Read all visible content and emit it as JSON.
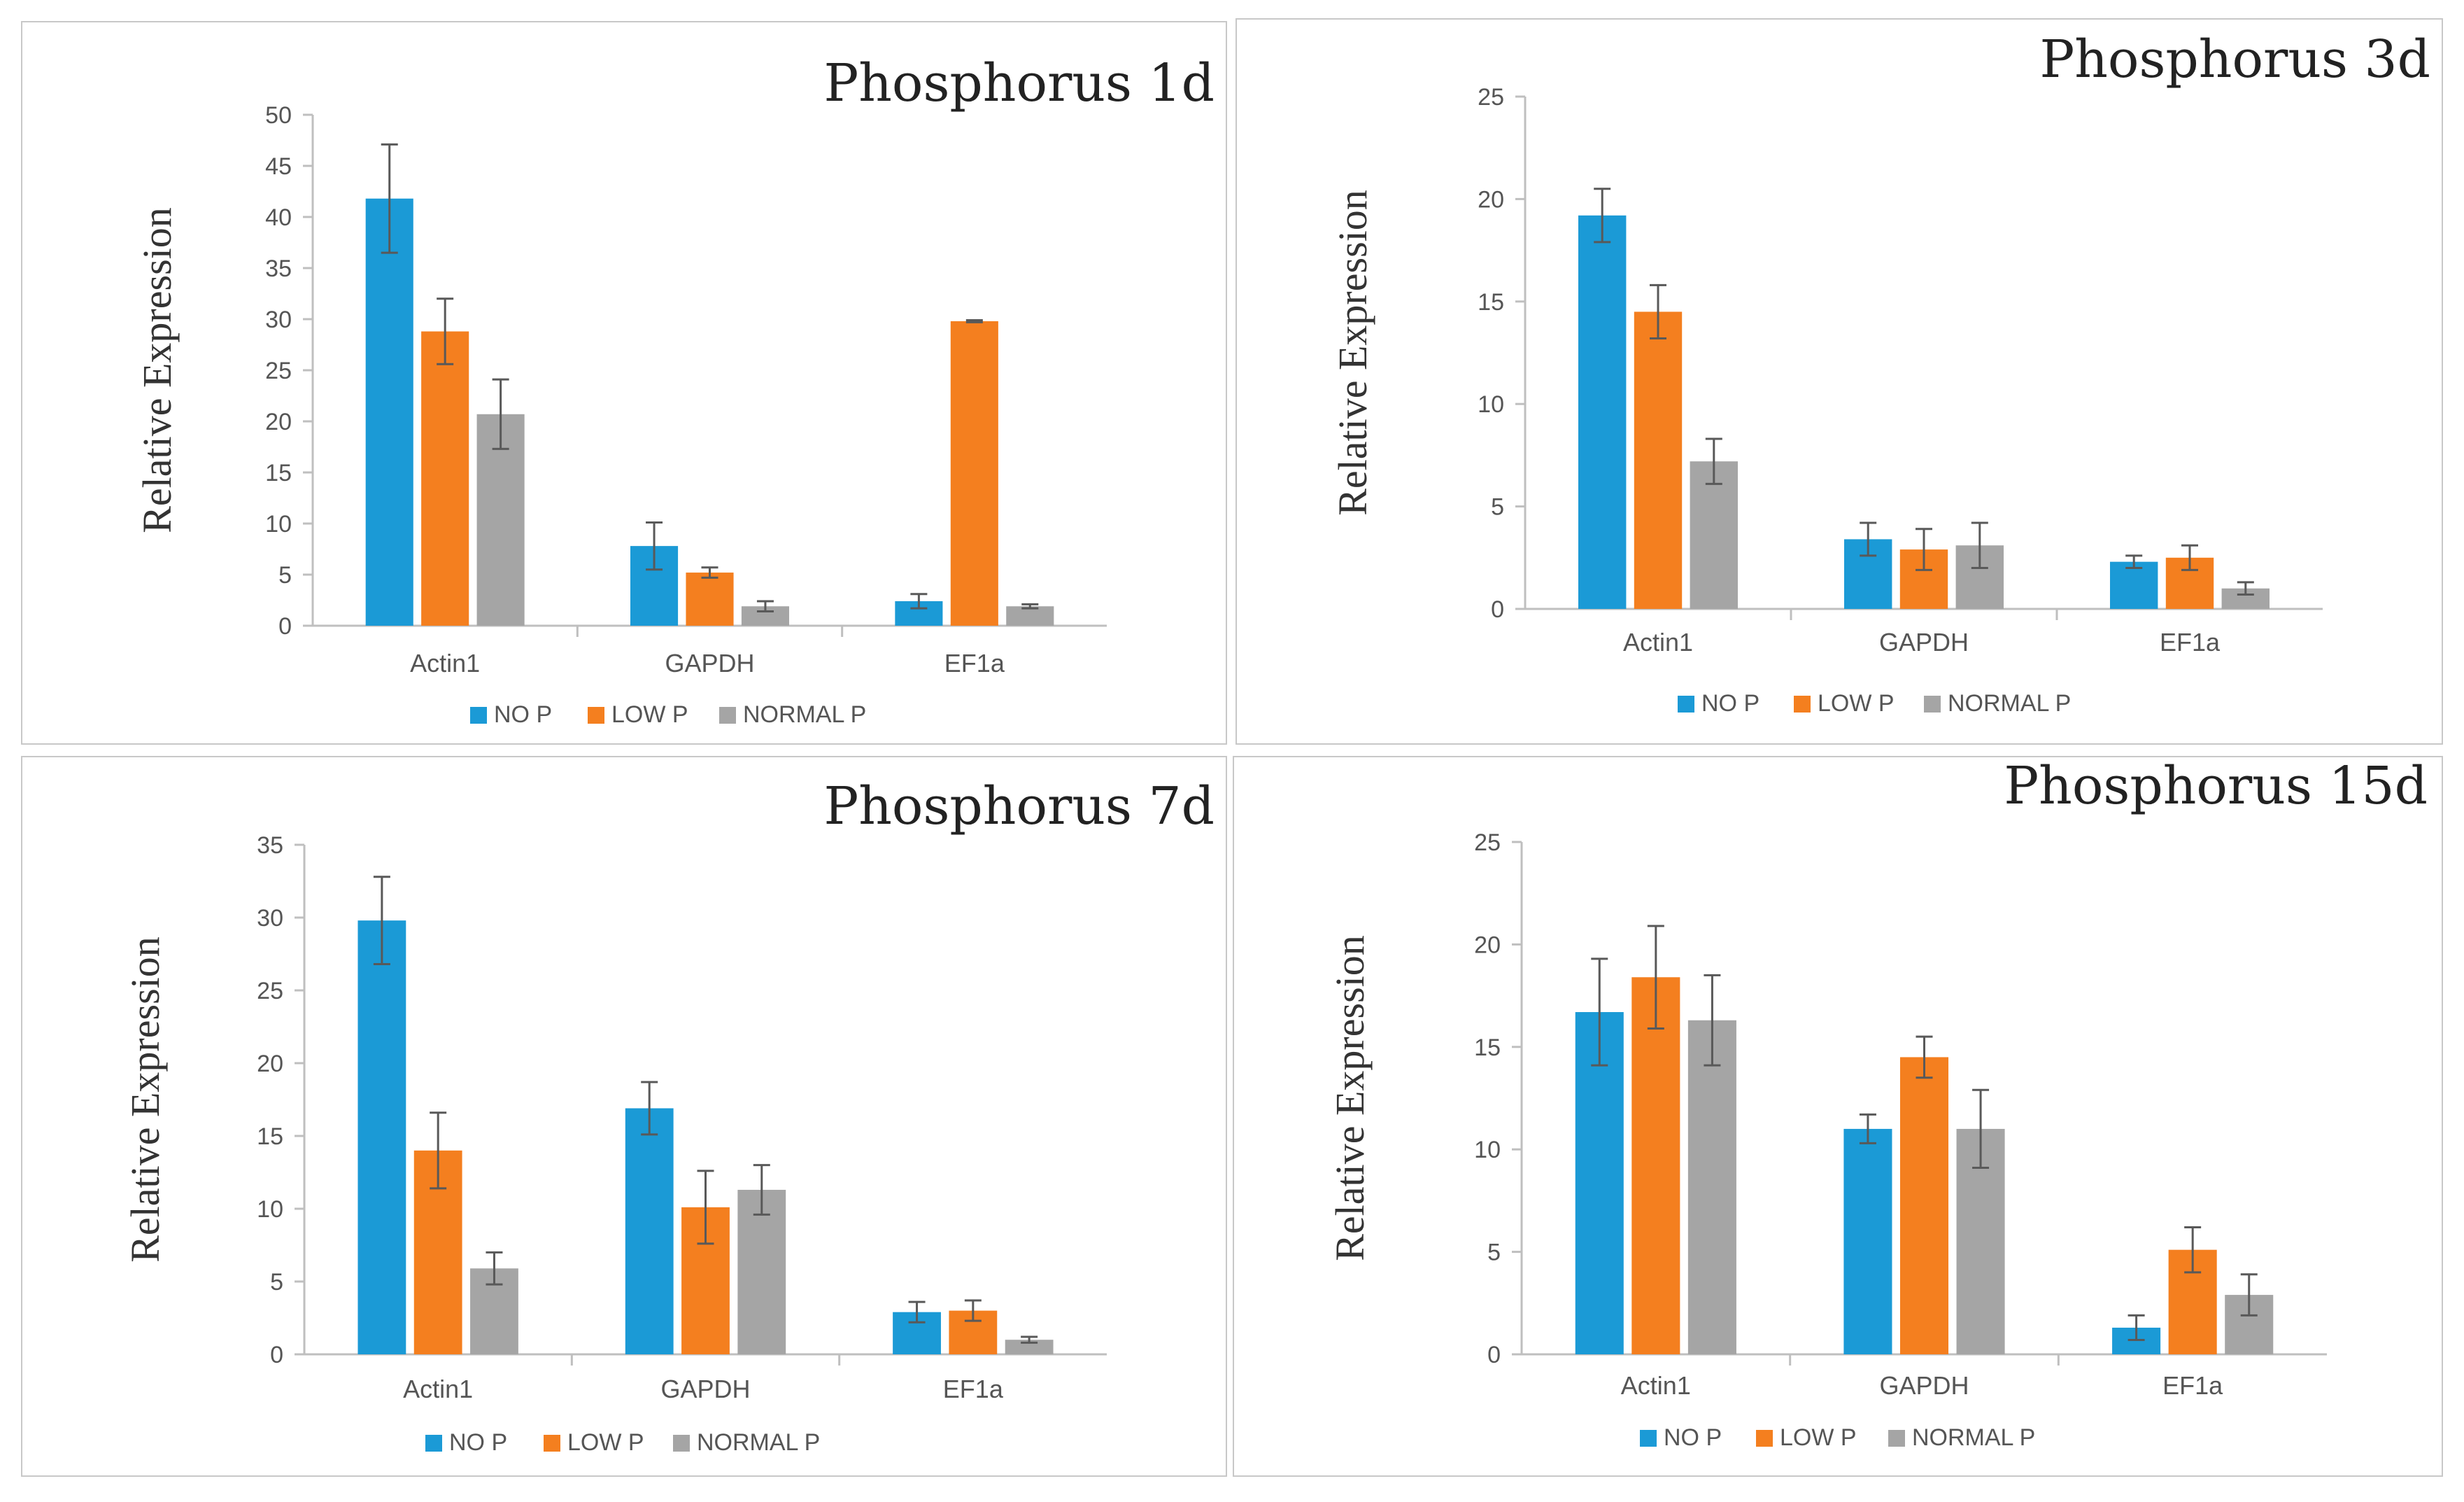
{
  "chart_data": [
    {
      "type": "bar",
      "title": "Phosphorus 1d",
      "xlabel": "",
      "ylabel": "Relative Expression",
      "categories": [
        "Actin1",
        "GAPDH",
        "EF1a"
      ],
      "ylim": [
        0,
        50
      ],
      "yticks": [
        0,
        5,
        10,
        15,
        20,
        25,
        30,
        35,
        40,
        45,
        50
      ],
      "series": [
        {
          "name": "NO P",
          "color": "#1b9ad6",
          "values": [
            41.8,
            7.8,
            2.4
          ],
          "errors": [
            5.3,
            2.3,
            0.7
          ]
        },
        {
          "name": "LOW P",
          "color": "#f47f1f",
          "values": [
            28.8,
            5.2,
            29.8
          ],
          "errors": [
            3.2,
            0.5,
            0.1
          ]
        },
        {
          "name": "NORMAL P",
          "color": "#a5a5a5",
          "values": [
            20.7,
            1.9,
            1.9
          ],
          "errors": [
            3.4,
            0.5,
            0.2
          ]
        }
      ],
      "legend": "bottom"
    },
    {
      "type": "bar",
      "title": "Phosphorus 3d",
      "xlabel": "",
      "ylabel": "Relative Expression",
      "categories": [
        "Actin1",
        "GAPDH",
        "EF1a"
      ],
      "ylim": [
        0,
        25
      ],
      "yticks": [
        0,
        5,
        10,
        15,
        20,
        25
      ],
      "series": [
        {
          "name": "NO P",
          "color": "#1b9ad6",
          "values": [
            19.2,
            3.4,
            2.3
          ],
          "errors": [
            1.3,
            0.8,
            0.3
          ]
        },
        {
          "name": "LOW P",
          "color": "#f47f1f",
          "values": [
            14.5,
            2.9,
            2.5
          ],
          "errors": [
            1.3,
            1.0,
            0.6
          ]
        },
        {
          "name": "NORMAL P",
          "color": "#a5a5a5",
          "values": [
            7.2,
            3.1,
            1.0
          ],
          "errors": [
            1.1,
            1.1,
            0.3
          ]
        }
      ],
      "legend": "bottom"
    },
    {
      "type": "bar",
      "title": "Phosphorus 7d",
      "xlabel": "",
      "ylabel": "Relative Expression",
      "categories": [
        "Actin1",
        "GAPDH",
        "EF1a"
      ],
      "ylim": [
        0,
        35
      ],
      "yticks": [
        0,
        5,
        10,
        15,
        20,
        25,
        30,
        35
      ],
      "series": [
        {
          "name": "NO P",
          "color": "#1b9ad6",
          "values": [
            29.8,
            16.9,
            2.9
          ],
          "errors": [
            3.0,
            1.8,
            0.7
          ]
        },
        {
          "name": "LOW P",
          "color": "#f47f1f",
          "values": [
            14.0,
            10.1,
            3.0
          ],
          "errors": [
            2.6,
            2.5,
            0.7
          ]
        },
        {
          "name": "NORMAL P",
          "color": "#a5a5a5",
          "values": [
            5.9,
            11.3,
            1.0
          ],
          "errors": [
            1.1,
            1.7,
            0.2
          ]
        }
      ],
      "legend": "bottom"
    },
    {
      "type": "bar",
      "title": "Phosphorus 15d",
      "xlabel": "",
      "ylabel": "Relative Expression",
      "categories": [
        "Actin1",
        "GAPDH",
        "EF1a"
      ],
      "ylim": [
        0,
        25
      ],
      "yticks": [
        0,
        5,
        10,
        15,
        20,
        25
      ],
      "series": [
        {
          "name": "NO P",
          "color": "#1b9ad6",
          "values": [
            16.7,
            11.0,
            1.3
          ],
          "errors": [
            2.6,
            0.7,
            0.6
          ]
        },
        {
          "name": "LOW P",
          "color": "#f47f1f",
          "values": [
            18.4,
            14.5,
            5.1
          ],
          "errors": [
            2.5,
            1.0,
            1.1
          ]
        },
        {
          "name": "NORMAL P",
          "color": "#a5a5a5",
          "values": [
            16.3,
            11.0,
            2.9
          ],
          "errors": [
            2.2,
            1.9,
            1.0
          ]
        }
      ],
      "legend": "bottom"
    }
  ]
}
